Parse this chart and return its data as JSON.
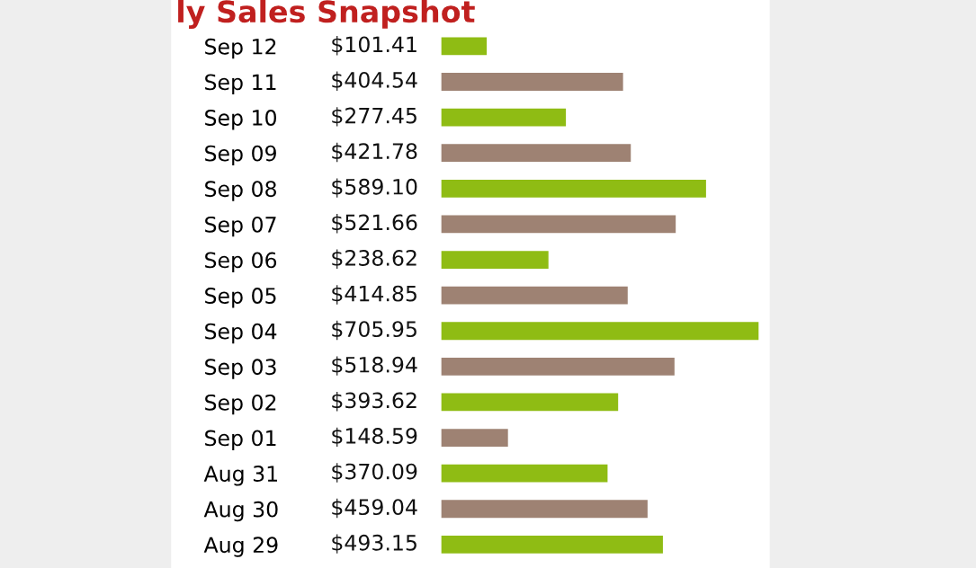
{
  "chart_data": {
    "type": "bar",
    "orientation": "horizontal",
    "title": "ly Sales Snapshot",
    "categories": [
      "Sep 12",
      "Sep 11",
      "Sep 10",
      "Sep 09",
      "Sep 08",
      "Sep 07",
      "Sep 06",
      "Sep 05",
      "Sep 04",
      "Sep 03",
      "Sep 02",
      "Sep 01",
      "Aug 31",
      "Aug 30",
      "Aug 29"
    ],
    "values": [
      101.41,
      404.54,
      277.45,
      421.78,
      589.1,
      521.66,
      238.62,
      414.85,
      705.95,
      518.94,
      393.62,
      148.59,
      370.09,
      459.04,
      493.15
    ],
    "colors": [
      "#8fbc14",
      "#9e8273",
      "#8fbc14",
      "#9e8273",
      "#8fbc14",
      "#9e8273",
      "#8fbc14",
      "#9e8273",
      "#8fbc14",
      "#9e8273",
      "#8fbc14",
      "#9e8273",
      "#8fbc14",
      "#9e8273",
      "#8fbc14"
    ],
    "value_labels": [
      "$101.41",
      "$404.54",
      "$277.45",
      "$421.78",
      "$589.10",
      "$521.66",
      "$238.62",
      "$414.85",
      "$705.95",
      "$518.94",
      "$393.62",
      "$148.59",
      "$370.09",
      "$459.04",
      "$493.15"
    ],
    "grid": false,
    "legend": false
  }
}
